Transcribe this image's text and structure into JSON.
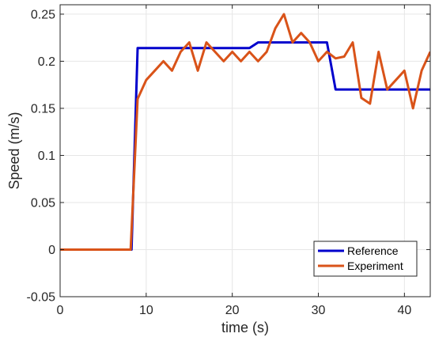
{
  "chart_data": {
    "type": "line",
    "xlabel": "time (s)",
    "ylabel": "Speed (m/s)",
    "xlim": [
      0,
      43
    ],
    "ylim": [
      -0.05,
      0.26
    ],
    "xticks": [
      0,
      10,
      20,
      30,
      40
    ],
    "yticks": [
      -0.05,
      0,
      0.05,
      0.1,
      0.15,
      0.2,
      0.25
    ],
    "xtick_labels": [
      "0",
      "10",
      "20",
      "30",
      "40"
    ],
    "ytick_labels": [
      "-0.05",
      "0",
      "0.05",
      "0.1",
      "0.15",
      "0.2",
      "0.25"
    ],
    "grid": true,
    "legend_position": "bottom-right",
    "series": [
      {
        "name": "Reference",
        "color": "#0000cc",
        "x": [
          0,
          8.3,
          9,
          22,
          23,
          31,
          32,
          43
        ],
        "y": [
          0,
          0,
          0.214,
          0.214,
          0.22,
          0.22,
          0.17,
          0.17
        ]
      },
      {
        "name": "Experiment",
        "color": "#d95319",
        "x": [
          0,
          8.2,
          9,
          10,
          11,
          12,
          13,
          14,
          15,
          16,
          17,
          18,
          19,
          20,
          21,
          22,
          23,
          24,
          25,
          26,
          27,
          28,
          29,
          30,
          31,
          32,
          33,
          34,
          35,
          36,
          37,
          38,
          39,
          40,
          41,
          42,
          43
        ],
        "y": [
          0,
          0,
          0.16,
          0.18,
          0.19,
          0.2,
          0.19,
          0.21,
          0.22,
          0.19,
          0.22,
          0.21,
          0.2,
          0.21,
          0.2,
          0.21,
          0.2,
          0.21,
          0.235,
          0.25,
          0.22,
          0.23,
          0.22,
          0.2,
          0.21,
          0.203,
          0.205,
          0.22,
          0.161,
          0.155,
          0.21,
          0.17,
          0.18,
          0.19,
          0.15,
          0.19,
          0.21
        ]
      }
    ]
  }
}
